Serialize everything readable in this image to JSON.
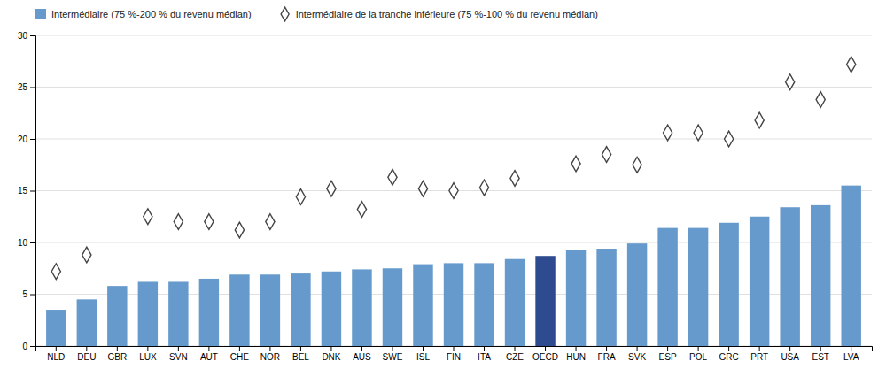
{
  "chart_data": {
    "type": "bar",
    "categories": [
      "NLD",
      "DEU",
      "GBR",
      "LUX",
      "SVN",
      "AUT",
      "CHE",
      "NOR",
      "BEL",
      "DNK",
      "AUS",
      "SWE",
      "ISL",
      "FIN",
      "ITA",
      "CZE",
      "OECD",
      "HUN",
      "FRA",
      "SVK",
      "ESP",
      "POL",
      "GRC",
      "PRT",
      "USA",
      "EST",
      "LVA"
    ],
    "series": [
      {
        "name": "Intermédiaire (75 %-200 % du revenu médian)",
        "type": "bar",
        "color": "#6699CC",
        "colors": [
          "#6699CC",
          "#6699CC",
          "#6699CC",
          "#6699CC",
          "#6699CC",
          "#6699CC",
          "#6699CC",
          "#6699CC",
          "#6699CC",
          "#6699CC",
          "#6699CC",
          "#6699CC",
          "#6699CC",
          "#6699CC",
          "#6699CC",
          "#6699CC",
          "#2D4B8E",
          "#6699CC",
          "#6699CC",
          "#6699CC",
          "#6699CC",
          "#6699CC",
          "#6699CC",
          "#6699CC",
          "#6699CC",
          "#6699CC",
          "#6699CC"
        ],
        "values": [
          3.5,
          4.5,
          5.8,
          6.2,
          6.2,
          6.5,
          6.9,
          6.9,
          7.0,
          7.2,
          7.4,
          7.5,
          7.9,
          8.0,
          8.0,
          8.4,
          8.7,
          9.3,
          9.4,
          9.9,
          11.4,
          11.4,
          11.9,
          12.5,
          13.4,
          13.6,
          15.5
        ]
      },
      {
        "name": "Intermédiaire de la tranche inférieure (75 %-100 % du revenu médian)",
        "type": "scatter",
        "marker": "diamond",
        "color": "#444444",
        "values": [
          7.2,
          8.8,
          null,
          12.5,
          12.0,
          12.0,
          11.2,
          12.0,
          14.4,
          15.2,
          13.2,
          16.3,
          15.2,
          15.0,
          15.3,
          16.2,
          null,
          17.6,
          18.5,
          17.5,
          20.6,
          20.6,
          20.0,
          21.8,
          25.5,
          23.8,
          27.2
        ]
      }
    ],
    "ylim": [
      0,
      30
    ],
    "yticks": [
      0,
      5,
      10,
      15,
      20,
      25,
      30
    ],
    "grid": true,
    "legend": "top"
  }
}
